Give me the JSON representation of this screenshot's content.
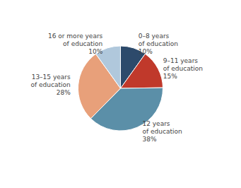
{
  "chart_data": {
    "type": "pie",
    "categories": [
      "0–8 years\nof education",
      "9–11 years\nof education",
      "12 years\nof education",
      "13–15 years\nof education",
      "16 or more years\nof education"
    ],
    "values": [
      10,
      15,
      38,
      28,
      10
    ],
    "value_labels": [
      "10%",
      "15%",
      "38%",
      "28%",
      "10%"
    ],
    "colors": [
      "#2d4a6b",
      "#c0392b",
      "#5b8fa8",
      "#e8a07a",
      "#b0c8dc"
    ],
    "data_labels": true,
    "legend": false
  }
}
